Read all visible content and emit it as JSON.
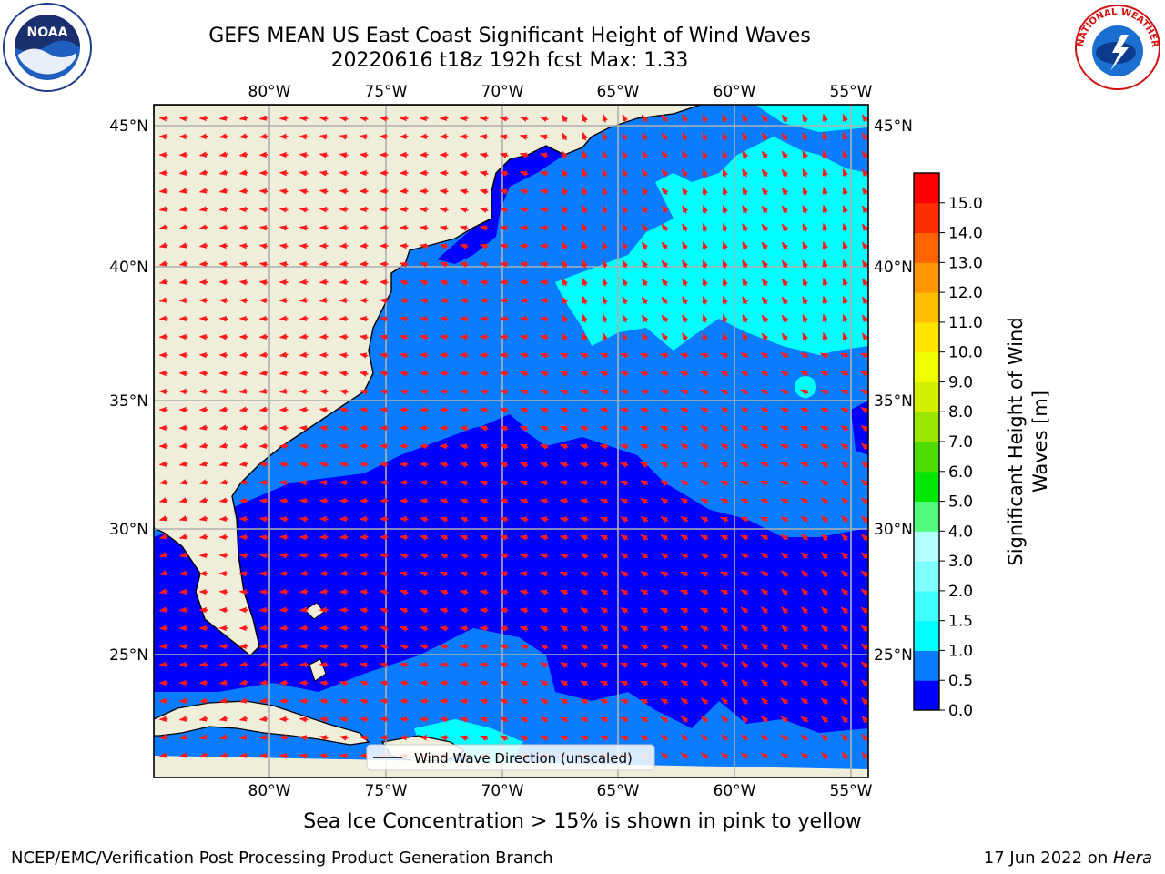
{
  "header": {
    "title_line1": "GEFS MEAN US East Coast Significant Height of Wind Waves",
    "title_line2": "20220616 t18z 192h fcst   Max: 1.33"
  },
  "logos": {
    "left": "NOAA",
    "right_text": "NATIONAL WEATHER SERVICE"
  },
  "map": {
    "lon_labels": [
      "80°W",
      "75°W",
      "70°W",
      "65°W",
      "60°W",
      "55°W"
    ],
    "lat_labels": [
      "45°N",
      "40°N",
      "35°N",
      "30°N",
      "25°N"
    ],
    "legend_label": "Wind Wave Direction (unscaled)",
    "colors": {
      "land": "#efeedb",
      "arrow": "#ff1a1a",
      "grid": "#b0b0b0"
    }
  },
  "colorbar": {
    "title_line1": "Significant Height of Wind",
    "title_line2": "Waves [m]",
    "ticks": [
      "0.0",
      "0.5",
      "1.0",
      "1.5",
      "2.0",
      "3.0",
      "4.0",
      "5.0",
      "6.0",
      "7.0",
      "8.0",
      "9.0",
      "10.0",
      "11.0",
      "12.0",
      "13.0",
      "14.0",
      "15.0"
    ],
    "colors": [
      "#0000ff",
      "#0a7cff",
      "#00ffff",
      "#40ffff",
      "#80ffff",
      "#b3ffff",
      "#50fa7b",
      "#00e600",
      "#4cdc00",
      "#9be600",
      "#d2f000",
      "#f0ff00",
      "#ffe600",
      "#ffbe00",
      "#ff9600",
      "#ff6400",
      "#ff2d00",
      "#ff0000"
    ]
  },
  "sea_ice_note": "Sea Ice Concentration > 15% is shown in pink to yellow",
  "footer": {
    "left": "NCEP/EMC/Verification Post Processing Product Generation Branch",
    "right_prefix": "17 Jun 2022 on ",
    "right_host": "Hera"
  }
}
